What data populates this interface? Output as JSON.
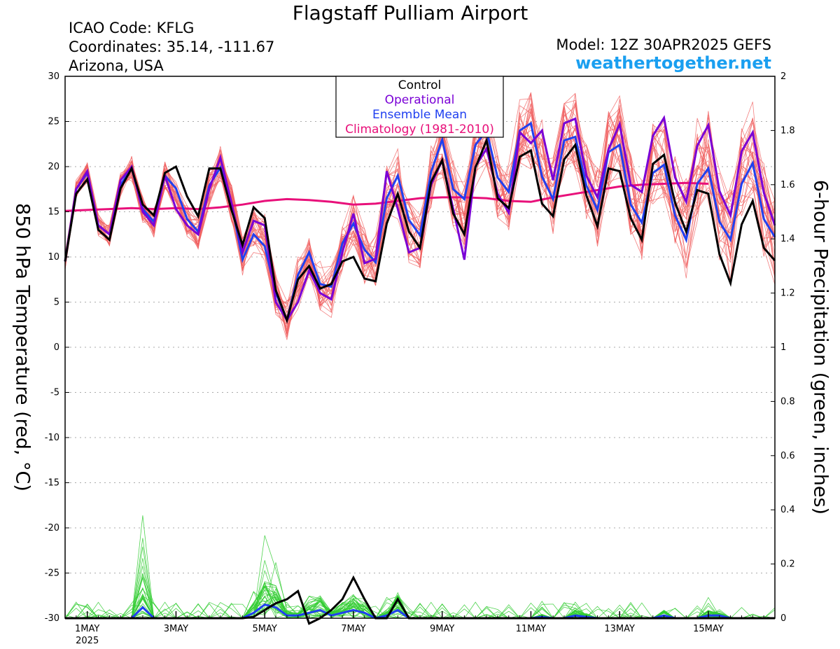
{
  "header": {
    "title": "Flagstaff Pulliam Airport",
    "icao": "ICAO Code: KFLG",
    "coords": "Coordinates: 35.14, -111.67",
    "region": "Arizona, USA",
    "model": "Model: 12Z 30APR2025 GEFS",
    "site": "weathertogether.net"
  },
  "colors": {
    "control": "#000000",
    "operational": "#7a00d6",
    "mean": "#2040f0",
    "climatology": "#e8107a",
    "members_temp": "#f06060",
    "members_precip": "#33cc33",
    "site": "#1a9ff0"
  },
  "chart_data": {
    "type": "line",
    "title": "Flagstaff Pulliam Airport",
    "ylabel": "850 hPa Temperature (red, °C)",
    "y2label": "6-hour Precipitation (green, inches)",
    "xlabel": "",
    "ylim": [
      -30,
      30
    ],
    "y2lim": [
      0,
      2
    ],
    "yticks": [
      30,
      25,
      20,
      15,
      10,
      5,
      0,
      -5,
      -10,
      -15,
      -20,
      -25,
      -30
    ],
    "y2ticks": [
      "2",
      "1.8",
      "1.6",
      "1.4",
      "1.2",
      "1",
      "0.8",
      "0.6",
      "0.4",
      "0.2",
      "0"
    ],
    "x_tick_labels": [
      "1MAY",
      "3MAY",
      "5MAY",
      "7MAY",
      "9MAY",
      "11MAY",
      "13MAY",
      "15MAY"
    ],
    "x_year_label": "2025",
    "grid": true,
    "legend_position": "top-center",
    "legend": [
      "Control",
      "Operational",
      "Ensemble Mean",
      "Climatology (1981-2010)"
    ],
    "x_unit": "days since 30 Apr 2025 12Z (6-hour steps)",
    "series": [
      {
        "name": "Control",
        "values": [
          9.5,
          17,
          18.6,
          13,
          11.9,
          17.6,
          19.8,
          15.8,
          14.6,
          19.3,
          20,
          16.7,
          14.5,
          19.8,
          19.8,
          15.2,
          11.3,
          15.5,
          14.3,
          6.3,
          3,
          7.5,
          9,
          6.5,
          7,
          9.5,
          10,
          7.6,
          7.3,
          13.7,
          17,
          12.8,
          11,
          18.3,
          20.7,
          14.8,
          12.5,
          19.9,
          22.9,
          16.5,
          15.4,
          21.1,
          21.8,
          15.9,
          14.5,
          20.8,
          22.4,
          16.8,
          13.4,
          19.8,
          19.5,
          14.3,
          11.9,
          20.3,
          21.3,
          16,
          12.8,
          17.4,
          17,
          10.3,
          7.1,
          13.6,
          16.2,
          11,
          9.6
        ]
      },
      {
        "name": "Operational",
        "values": [
          9.5,
          17.5,
          19.5,
          13.5,
          12.5,
          18.5,
          20,
          15,
          13.5,
          19,
          15.3,
          13.5,
          12.5,
          17.5,
          21,
          16,
          10.5,
          14,
          13.5,
          5,
          3,
          5,
          8.5,
          6,
          5.3,
          10.5,
          14.8,
          9.3,
          9.8,
          19.5,
          15.3,
          10.5,
          11,
          18,
          20.7,
          15.3,
          9.7,
          20,
          22,
          17,
          14.9,
          23.8,
          22.6,
          24,
          18.5,
          24.8,
          25.3,
          19,
          16.6,
          21.9,
          24.7,
          18,
          17.2,
          23.4,
          25.4,
          18.8,
          16.1,
          22.3,
          24.6,
          17.3,
          14.6,
          21.7,
          23.8,
          17.1,
          13.5
        ]
      },
      {
        "name": "Ensemble Mean",
        "values": [
          9.5,
          17.5,
          19.3,
          13.5,
          12.5,
          18,
          19.8,
          15.3,
          13.9,
          19,
          17.6,
          14.2,
          12.8,
          17.9,
          19.9,
          15.9,
          9.7,
          12.5,
          11.2,
          6,
          3,
          8,
          10.5,
          7,
          6.7,
          11.5,
          13.7,
          10.8,
          9.4,
          16.5,
          19,
          14.1,
          12.4,
          19.4,
          23,
          17.5,
          16.4,
          22.4,
          24,
          18.8,
          17.2,
          24,
          24.8,
          18.9,
          16.4,
          22.9,
          23.3,
          17.9,
          15.2,
          21.6,
          22.4,
          15.8,
          13.8,
          19.3,
          20.2,
          14.6,
          11.9,
          18.1,
          19.8,
          13.9,
          11.9,
          18.1,
          20.4,
          14.2,
          12.2
        ]
      },
      {
        "name": "Climatology (1981-2010)",
        "values": [
          15.1,
          15.2,
          15.3,
          15.4,
          15.3,
          15.4,
          15.3,
          15.5,
          15.8,
          16.2,
          16.4,
          16.3,
          16.1,
          15.8,
          15.9,
          16.2,
          16.5,
          16.6,
          16.6,
          16.5,
          16.2,
          16.1,
          16.6,
          17,
          17.4,
          17.8,
          18,
          18.1,
          18.2,
          18.1
        ]
      },
      {
        "name": "Control precip",
        "values": [
          0,
          0,
          0,
          0,
          0,
          0,
          0,
          0,
          0,
          0,
          0,
          0,
          0,
          0,
          0,
          0,
          0,
          0.005,
          0.03,
          0.055,
          0.07,
          0.1,
          -0.02,
          0,
          0.03,
          0.07,
          0.15,
          0.07,
          0,
          0,
          0.07,
          0,
          0,
          0,
          0,
          0,
          0,
          0,
          0,
          0,
          0,
          0,
          0,
          0,
          0,
          0,
          0,
          0,
          0,
          0,
          0,
          0,
          0,
          0,
          0,
          0,
          0,
          0,
          0,
          0,
          0,
          0,
          0,
          0,
          0
        ]
      },
      {
        "name": "Ensemble Mean precip",
        "values": [
          0,
          0,
          0,
          0,
          0,
          0,
          0,
          0.04,
          0,
          0,
          0,
          0,
          0,
          0,
          0,
          0,
          0,
          0.02,
          0.05,
          0.04,
          0.01,
          0.01,
          0.02,
          0.03,
          0.01,
          0.02,
          0.03,
          0.02,
          0,
          0.01,
          0.03,
          0,
          0,
          0,
          0,
          0,
          0,
          0,
          0,
          0,
          0,
          0,
          0,
          0.005,
          0,
          0,
          0.01,
          0.005,
          0,
          0,
          0,
          0,
          0,
          0,
          0.01,
          0,
          0,
          0,
          0.01,
          0.01,
          0,
          0,
          0,
          0,
          0
        ]
      }
    ]
  }
}
